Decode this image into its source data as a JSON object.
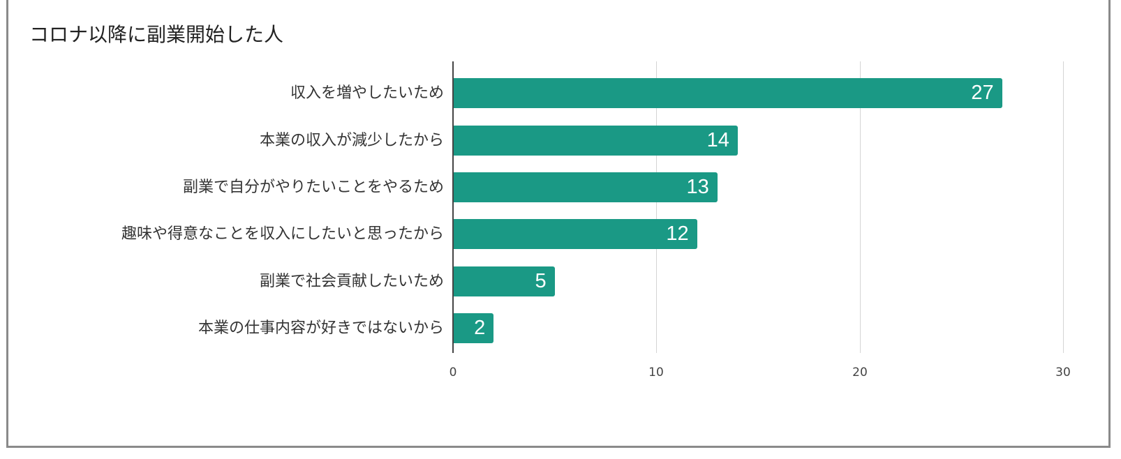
{
  "chart_data": {
    "type": "bar",
    "orientation": "horizontal",
    "title": "コロナ以降に副業開始した人",
    "xlabel": "",
    "ylabel": "",
    "categories": [
      "収入を増やしたいため",
      "本業の収入が減少したから",
      "副業で自分がやりたいことをやるため",
      "趣味や得意なことを収入にしたいと思ったから",
      "副業で社会貢献したいため",
      "本業の仕事内容が好きではないから"
    ],
    "values": [
      27,
      14,
      13,
      12,
      5,
      2
    ],
    "xlim": [
      0,
      30
    ],
    "xticks": [
      "0",
      "10",
      "20",
      "30"
    ],
    "grid": true,
    "legend": null,
    "bar_color": "#1a9985",
    "data_labels": true
  }
}
